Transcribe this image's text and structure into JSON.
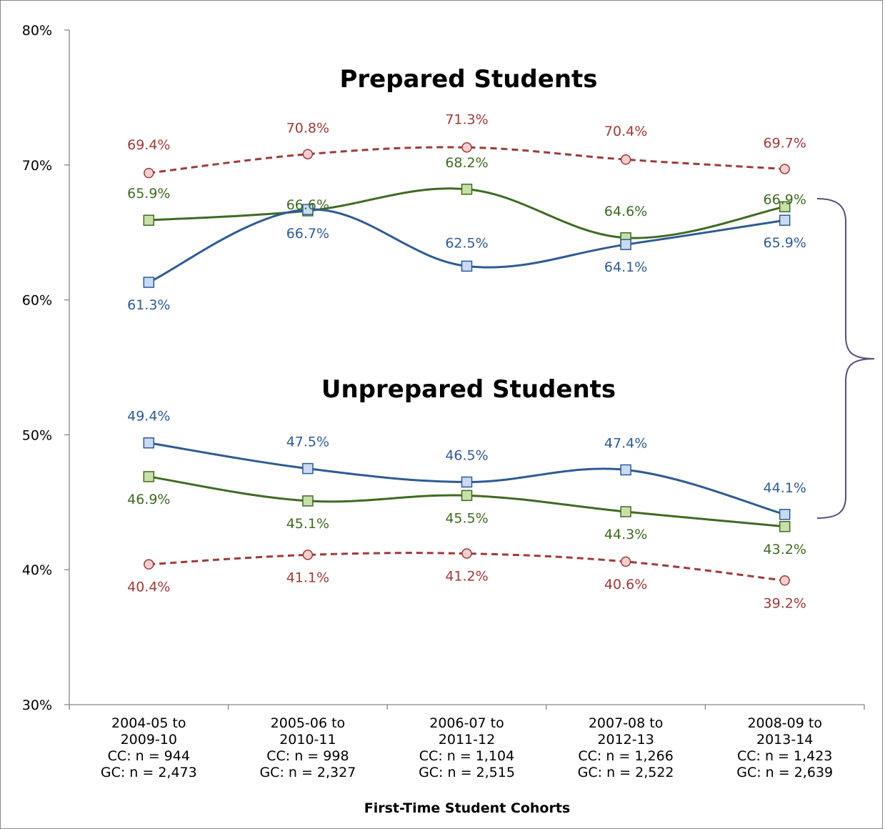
{
  "chart_data": {
    "type": "line",
    "title": "",
    "xlabel": "First-Time Student Cohorts",
    "ylabel": "",
    "ylim": [
      30,
      80
    ],
    "yticks": [
      "30%",
      "40%",
      "50%",
      "60%",
      "70%",
      "80%"
    ],
    "categories": [
      [
        "2004-05 to",
        "2009-10",
        "CC: n = 944",
        "GC: n = 2,473"
      ],
      [
        "2005-06 to",
        "2010-11",
        "CC: n = 998",
        "GC: n = 2,327"
      ],
      [
        "2006-07 to",
        "2011-12",
        "CC: n = 1,104",
        "GC: n = 2,515"
      ],
      [
        "2007-08 to",
        "2012-13",
        "CC: n = 1,266",
        "GC: n = 2,522"
      ],
      [
        "2008-09 to",
        "2013-14",
        "CC: n = 1,423",
        "GC: n = 2,639"
      ]
    ],
    "annotations": [
      "Prepared Students",
      "Unprepared Students"
    ],
    "series": [
      {
        "color": "#a0393a",
        "marker": "circle",
        "dashed": true,
        "labelPos": "above",
        "values": [
          69.4,
          70.8,
          71.3,
          70.4,
          69.7
        ],
        "labels": [
          "69.4%",
          "70.8%",
          "71.3%",
          "70.4%",
          "69.7%"
        ]
      },
      {
        "color": "#3f6b22",
        "marker": "square",
        "fill": "#c8e0a8",
        "dashed": false,
        "values": [
          65.9,
          66.6,
          68.2,
          64.6,
          66.9
        ],
        "labels": [
          "65.9%",
          "66.6%",
          "68.2%",
          "64.6%",
          "66.9%"
        ]
      },
      {
        "color": "#2e5b95",
        "marker": "square",
        "fill": "#c9daf2",
        "dashed": false,
        "values": [
          61.3,
          66.7,
          62.5,
          64.1,
          65.9
        ],
        "labels": [
          "61.3%",
          "66.7%",
          "62.5%",
          "64.1%",
          "65.9%"
        ]
      },
      {
        "color": "#2e5b95",
        "marker": "square",
        "fill": "#c9daf2",
        "dashed": false,
        "values": [
          49.4,
          47.5,
          46.5,
          47.4,
          44.1
        ],
        "labels": [
          "49.4%",
          "47.5%",
          "46.5%",
          "47.4%",
          "44.1%"
        ]
      },
      {
        "color": "#3f6b22",
        "marker": "square",
        "fill": "#c8e0a8",
        "dashed": false,
        "values": [
          46.9,
          45.1,
          45.5,
          44.3,
          43.2
        ],
        "labels": [
          "46.9%",
          "45.1%",
          "45.5%",
          "44.3%",
          "43.2%"
        ]
      },
      {
        "color": "#a0393a",
        "marker": "circle",
        "fill": "#f0cfcf",
        "dashed": true,
        "values": [
          40.4,
          41.1,
          41.2,
          40.6,
          39.2
        ],
        "labels": [
          "40.4%",
          "41.1%",
          "41.2%",
          "40.6%",
          "39.2%"
        ]
      }
    ]
  }
}
